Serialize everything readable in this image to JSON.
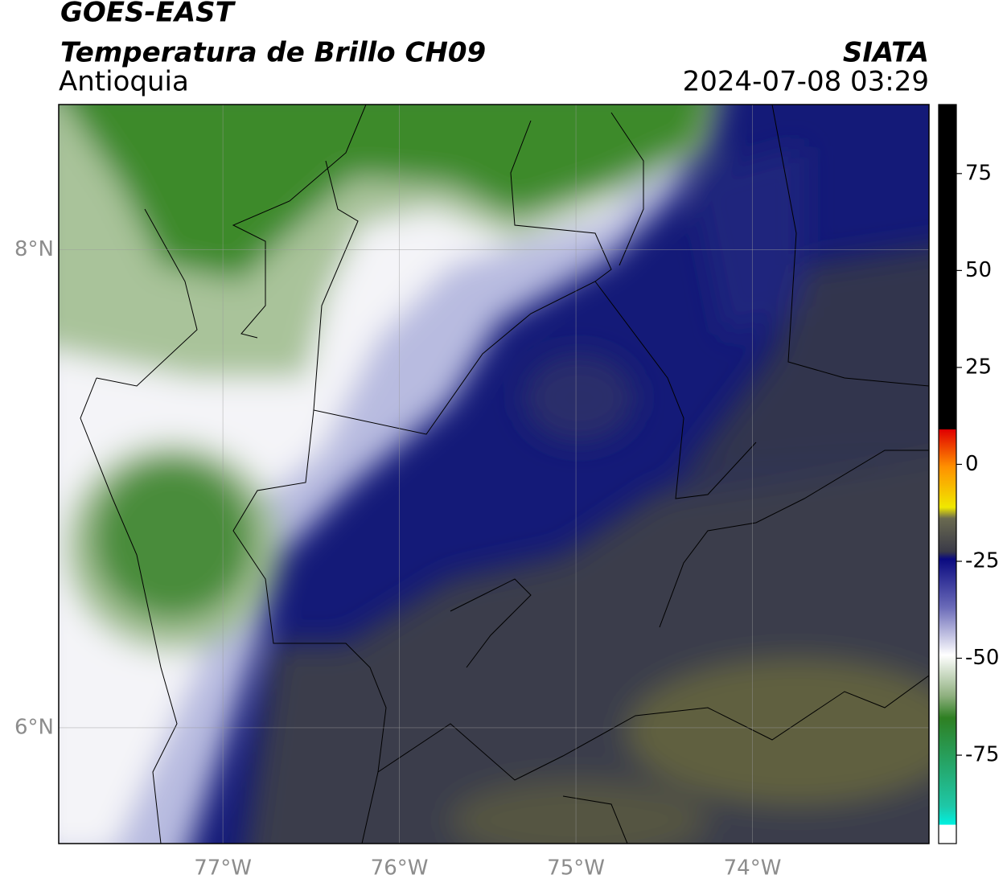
{
  "header": {
    "title": "GOES-EAST",
    "subtitle": "Temperatura de Brillo CH09",
    "region": "Antioquia",
    "source": "SIATA",
    "datetime": "2024-07-08 03:29"
  },
  "map": {
    "xlim": [
      -77.93,
      -73.0
    ],
    "ylim": [
      5.515,
      8.608
    ],
    "xticks": [
      {
        "value": -77,
        "label": "77°W"
      },
      {
        "value": -76,
        "label": "76°W"
      },
      {
        "value": -75,
        "label": "75°W"
      },
      {
        "value": -74,
        "label": "74°W"
      }
    ],
    "yticks": [
      {
        "value": 8,
        "label": "8°N"
      },
      {
        "value": 6,
        "label": "6°N"
      }
    ],
    "grid": true
  },
  "colorbar": {
    "lim": [
      -97.8,
      92.8
    ],
    "ticks": [
      75,
      50,
      25,
      0,
      -25,
      -50,
      -75
    ]
  }
}
